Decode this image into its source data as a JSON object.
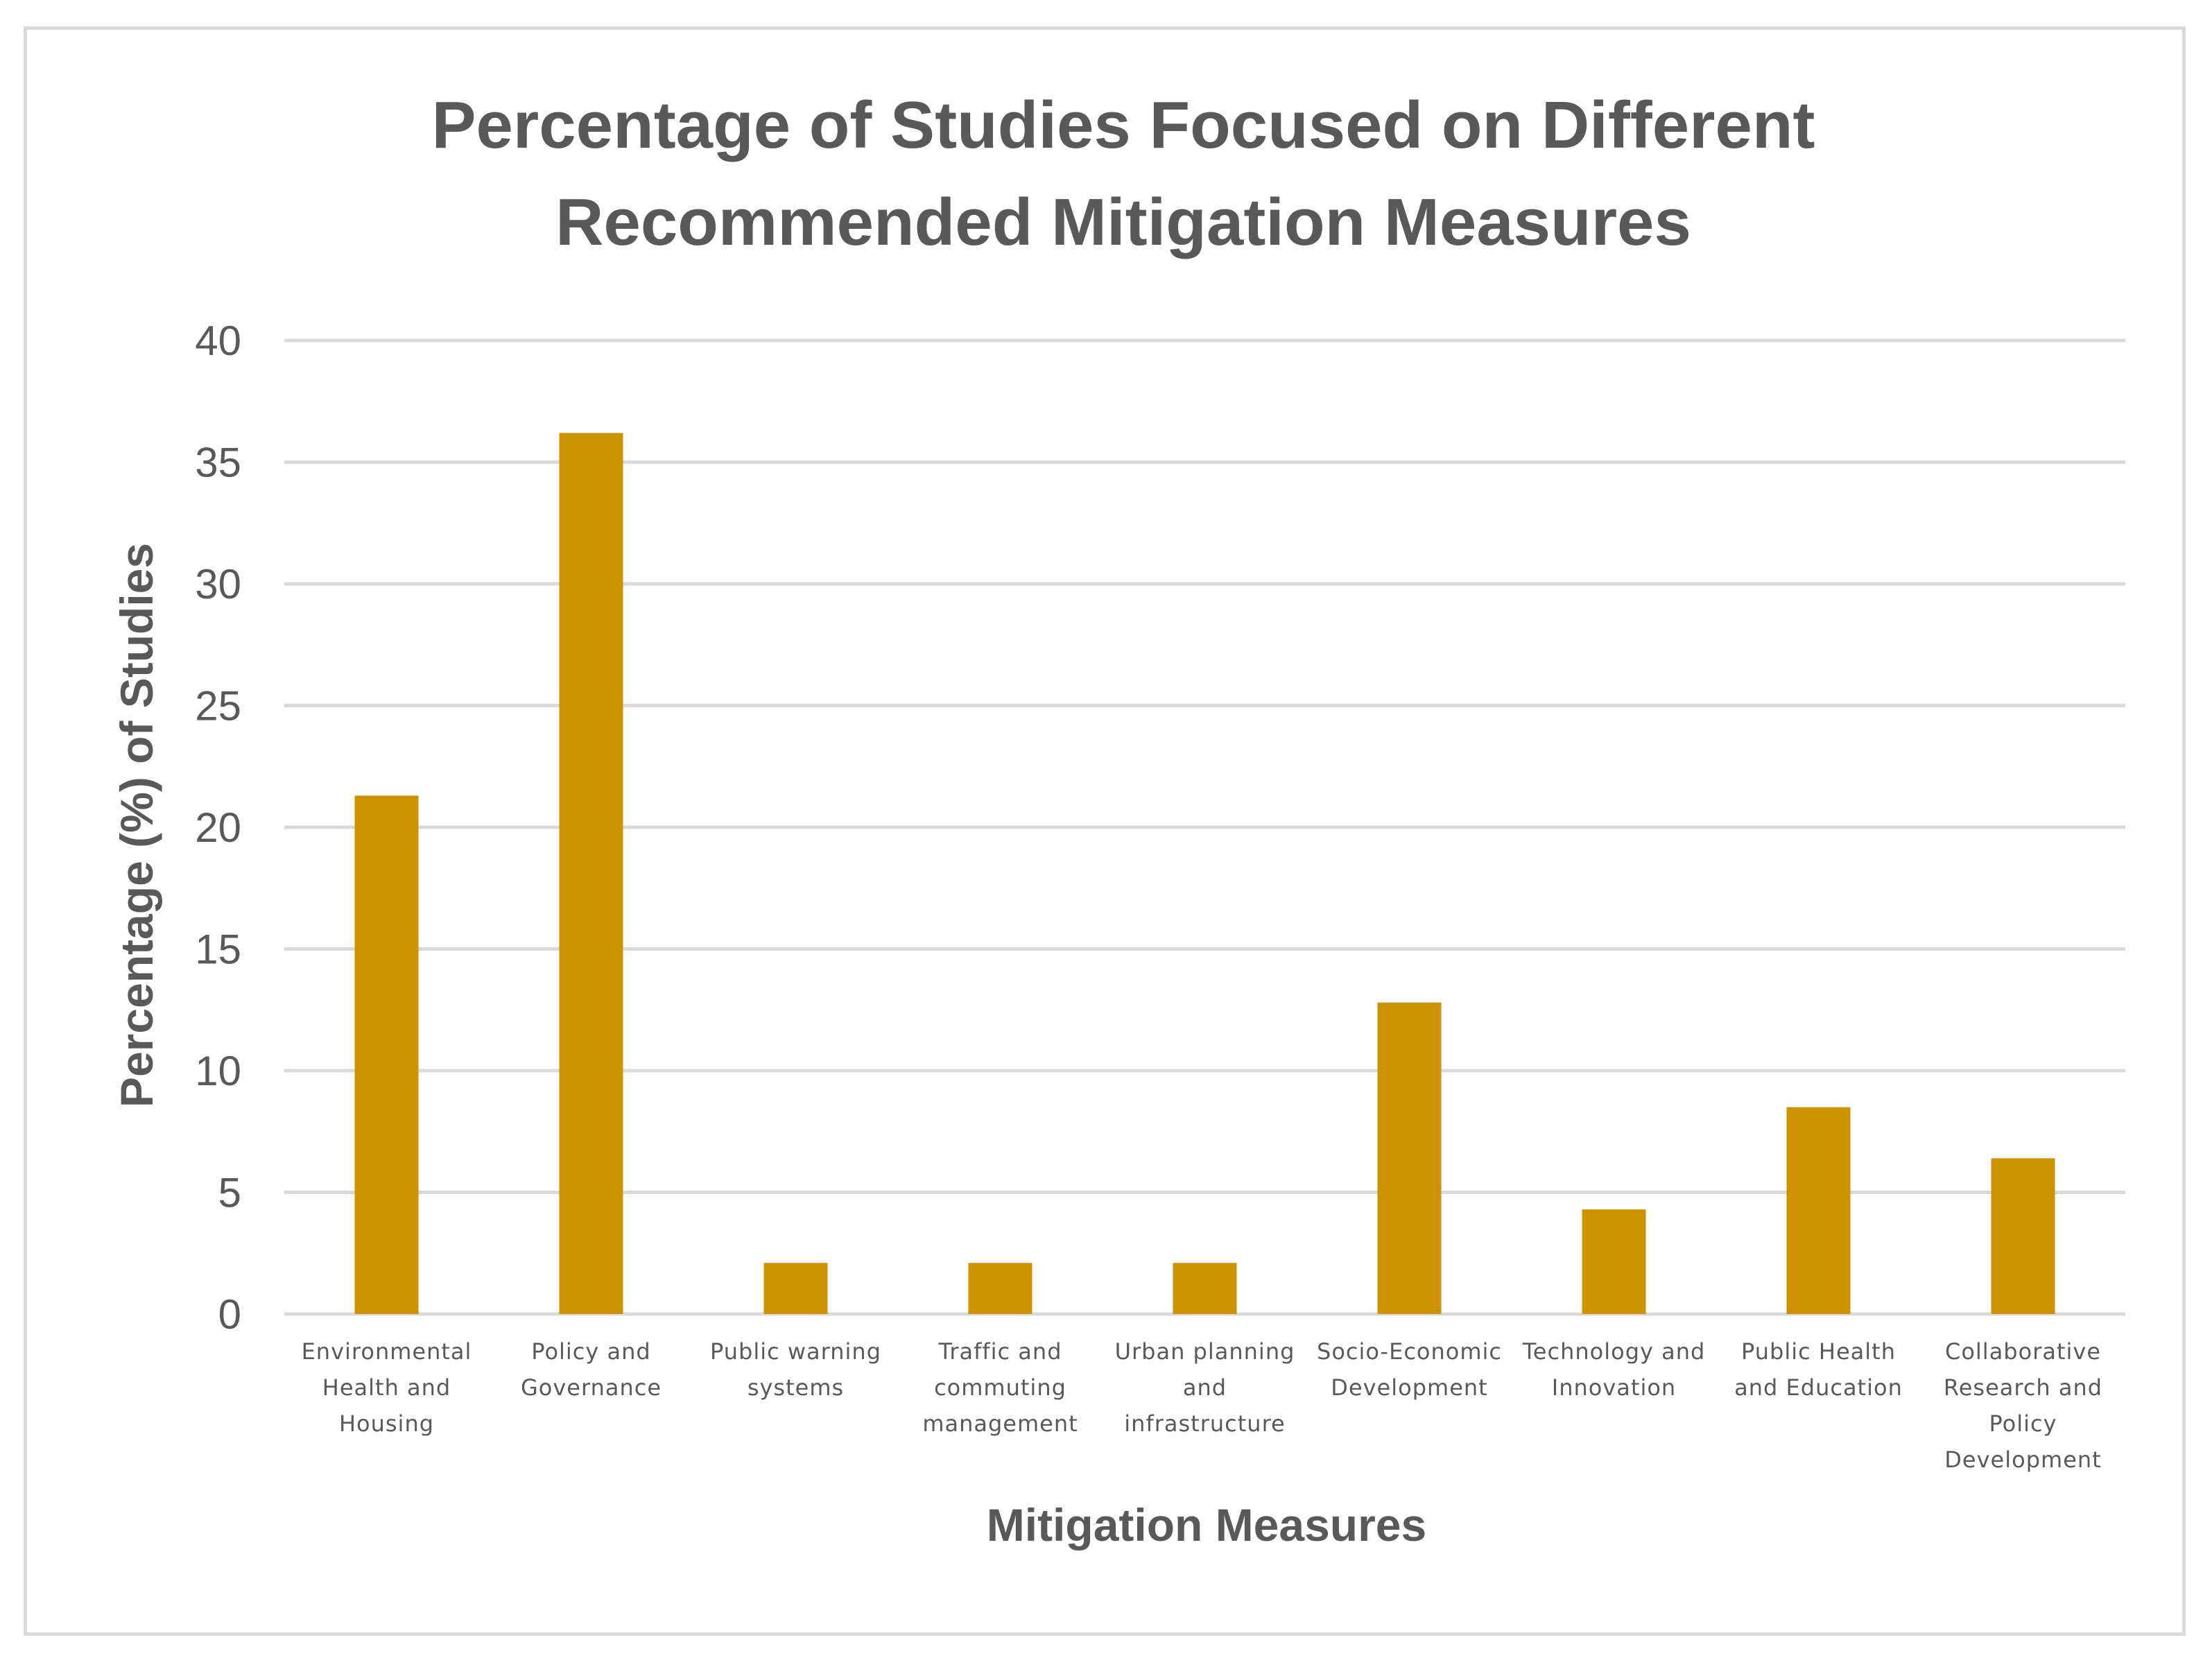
{
  "chart_data": {
    "type": "bar",
    "title_lines": [
      "Percentage of Studies Focused on Different",
      "Recommended Mitigation Measures"
    ],
    "xlabel": "Mitigation Measures",
    "ylabel": "Percentage (%) of Studies",
    "ylim": [
      0,
      40
    ],
    "yticks": [
      0,
      5,
      10,
      15,
      20,
      25,
      30,
      35,
      40
    ],
    "grid": true,
    "bar_color": "#cc9200",
    "grid_color": "#d9d9d9",
    "categories": [
      [
        "Environmental",
        "Health and",
        "Housing"
      ],
      [
        "Policy and",
        "Governance"
      ],
      [
        "Public warning",
        "systems"
      ],
      [
        "Traffic and",
        "commuting",
        "management"
      ],
      [
        "Urban planning",
        "and",
        "infrastructure"
      ],
      [
        "Socio-Economic",
        "Development"
      ],
      [
        "Technology and",
        "Innovation"
      ],
      [
        "Public Health",
        "and Education"
      ],
      [
        "Collaborative",
        "Research and",
        "Policy",
        "Development"
      ]
    ],
    "values": [
      21.3,
      36.2,
      2.1,
      2.1,
      2.1,
      12.8,
      4.3,
      8.5,
      6.4
    ]
  }
}
